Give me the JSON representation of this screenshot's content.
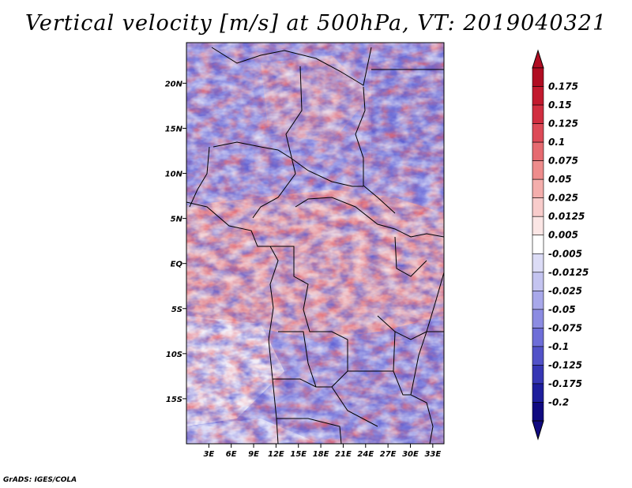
{
  "chart_data": {
    "type": "heatmap",
    "title": "Vertical velocity [m/s] at 500hPa, VT: 2019040321",
    "x_ticks": [
      "3E",
      "6E",
      "9E",
      "12E",
      "15E",
      "18E",
      "21E",
      "24E",
      "27E",
      "30E",
      "33E"
    ],
    "x_tick_values": [
      3,
      6,
      9,
      12,
      15,
      18,
      21,
      24,
      27,
      30,
      33
    ],
    "y_ticks": [
      "20N",
      "15N",
      "10N",
      "5N",
      "EQ",
      "5S",
      "10S",
      "15S"
    ],
    "y_tick_values": [
      20,
      15,
      10,
      5,
      0,
      -5,
      -10,
      -15
    ],
    "xlim": [
      0,
      34.5
    ],
    "ylim": [
      -20,
      24.5
    ],
    "colorbar": {
      "labels": [
        "0.175",
        "0.15",
        "0.125",
        "0.1",
        "0.075",
        "0.05",
        "0.025",
        "0.0125",
        "0.005",
        "-0.005",
        "-0.0125",
        "-0.025",
        "-0.05",
        "-0.075",
        "-0.1",
        "-0.125",
        "-0.175",
        "-0.2"
      ],
      "colors": [
        "#b00d22",
        "#c21a2e",
        "#d12e40",
        "#dd4a57",
        "#e66a70",
        "#ee8c8c",
        "#f4aeac",
        "#f8cccb",
        "#fbe6e5",
        "#ffffff",
        "#dcdcf6",
        "#c4c4f0",
        "#a8a8ea",
        "#8c8ce2",
        "#6e6ed8",
        "#5252c8",
        "#3636b4",
        "#1e1e9c",
        "#100a80"
      ]
    }
  },
  "credit": "GrADS: IGES/COLA"
}
